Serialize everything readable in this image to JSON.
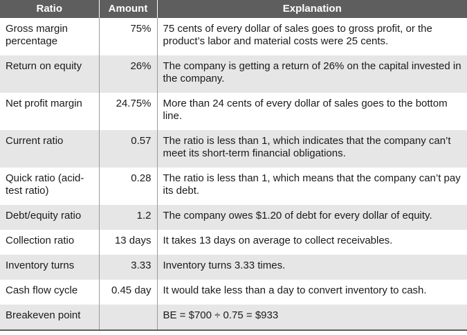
{
  "headers": {
    "ratio": "Ratio",
    "amount": "Amount",
    "explanation": "Explanation"
  },
  "rows": [
    {
      "ratio": "Gross margin percentage",
      "amount": "75%",
      "explanation": "75 cents of every dollar of sales goes to gross profit, or the product’s labor and material costs were 25 cents."
    },
    {
      "ratio": "Return on equity",
      "amount": "26%",
      "explanation": "The company is getting a return of 26% on the capital invested in the company."
    },
    {
      "ratio": "Net profit margin",
      "amount": "24.75%",
      "explanation": "More than 24 cents of every dollar of sales goes to the bottom line."
    },
    {
      "ratio": "Current ratio",
      "amount": "0.57",
      "explanation": "The ratio is less than 1, which indicates that the company can’t meet its short-term financial obligations."
    },
    {
      "ratio": "Quick ratio (acid-test ratio)",
      "amount": "0.28",
      "explanation": "The ratio is less than 1, which means that the company can’t pay its debt."
    },
    {
      "ratio": "Debt/equity ratio",
      "amount": "1.2",
      "explanation": "The company owes $1.20 of debt for every dollar of equity."
    },
    {
      "ratio": "Collection ratio",
      "amount": "13 days",
      "explanation": "It takes 13 days on average to collect receivables."
    },
    {
      "ratio": "Inventory turns",
      "amount": "3.33",
      "explanation": "Inventory turns 3.33 times."
    },
    {
      "ratio": "Cash flow cycle",
      "amount": "0.45 day",
      "explanation": "It would take less than a day to convert inventory to cash."
    },
    {
      "ratio": "Breakeven point",
      "amount": "",
      "explanation": "BE = $700 ÷ 0.75 = $933"
    }
  ]
}
